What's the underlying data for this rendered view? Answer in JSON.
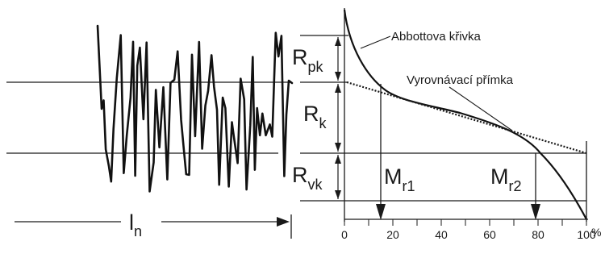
{
  "profile": {
    "length_label": "l",
    "length_subscript": "n"
  },
  "abbott": {
    "curve_label": "Abbottova křivka",
    "line_label": "Vyrovnávací přímka",
    "params": {
      "rpk": {
        "main": "R",
        "sub": "pk"
      },
      "rk": {
        "main": "R",
        "sub": "k"
      },
      "rvk": {
        "main": "R",
        "sub": "vk"
      }
    },
    "mr1": {
      "main": "M",
      "sub": "r1",
      "percent": 15
    },
    "mr2": {
      "main": "M",
      "sub": "r2",
      "percent": 80
    },
    "x_axis": {
      "ticks": [
        "0",
        "20",
        "40",
        "60",
        "80",
        "100"
      ],
      "unit": "%",
      "range": [
        0,
        100
      ]
    }
  }
}
